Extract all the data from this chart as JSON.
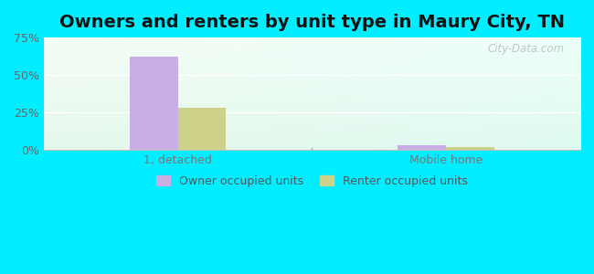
{
  "title": "Owners and renters by unit type in Maury City, TN",
  "categories": [
    "1, detached",
    "Mobile home"
  ],
  "owner_values": [
    62.0,
    3.0
  ],
  "renter_values": [
    28.0,
    2.0
  ],
  "owner_color": "#c9aee5",
  "renter_color": "#cdd18a",
  "ylim": [
    0,
    75
  ],
  "yticks": [
    0,
    25,
    50,
    75
  ],
  "yticklabels": [
    "0%",
    "25%",
    "50%",
    "75%"
  ],
  "background_outer": "#00eeff",
  "bar_width": 0.18,
  "legend_owner": "Owner occupied units",
  "legend_renter": "Renter occupied units",
  "watermark": "City-Data.com",
  "title_fontsize": 14,
  "tick_fontsize": 9,
  "legend_fontsize": 9,
  "group_positions": [
    1,
    2
  ],
  "xlim": [
    0.5,
    2.5
  ]
}
